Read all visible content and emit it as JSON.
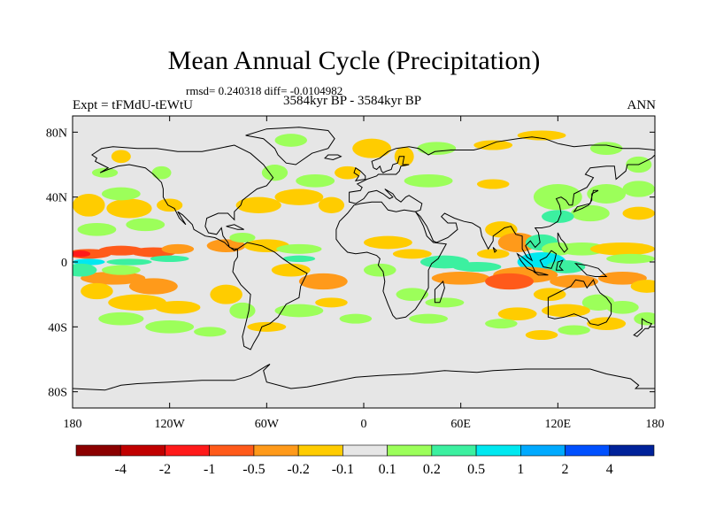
{
  "chart_data": {
    "type": "heatmap",
    "title": "Mean Annual Cycle (Precipitation)",
    "stats_label": "rmsd= 0.240318 diff= -0.0104982",
    "experiment_label": "Expt = tFMdU-tEWtU",
    "period_label": "3584kyr BP - 3584kyr BP",
    "season_label": "ANN",
    "xlim": [
      -180,
      180
    ],
    "ylim": [
      -90,
      90
    ],
    "x_ticks": [
      {
        "value": -180,
        "label": "180"
      },
      {
        "value": -120,
        "label": "120W"
      },
      {
        "value": -60,
        "label": "60W"
      },
      {
        "value": 0,
        "label": "0"
      },
      {
        "value": 60,
        "label": "60E"
      },
      {
        "value": 120,
        "label": "120E"
      },
      {
        "value": 180,
        "label": "180"
      }
    ],
    "y_ticks": [
      {
        "value": 80,
        "label": "80N"
      },
      {
        "value": 40,
        "label": "40N"
      },
      {
        "value": 0,
        "label": "0"
      },
      {
        "value": -40,
        "label": "40S"
      },
      {
        "value": -80,
        "label": "80S"
      }
    ],
    "colorbar": {
      "colors": [
        "#8b0000",
        "#c00000",
        "#ff1a1a",
        "#ff5a1a",
        "#ff9a1a",
        "#ffcc00",
        "#e6e6e6",
        "#9cff5a",
        "#3cf0a0",
        "#00e8f0",
        "#00aaff",
        "#0050ff",
        "#00229a"
      ],
      "labels": [
        "-4",
        "-2",
        "-1",
        "-0.5",
        "-0.2",
        "-0.1",
        "0.1",
        "0.2",
        "0.5",
        "1",
        "2",
        "4"
      ]
    },
    "anomaly_patches": [
      {
        "lon": -170,
        "lat": 5,
        "rx": 14,
        "ry": 3,
        "level": -3
      },
      {
        "lon": -150,
        "lat": 7,
        "rx": 14,
        "ry": 3,
        "level": -3
      },
      {
        "lon": -130,
        "lat": 6,
        "rx": 14,
        "ry": 3,
        "level": -3
      },
      {
        "lon": -115,
        "lat": 8,
        "rx": 10,
        "ry": 3,
        "level": -2
      },
      {
        "lon": -170,
        "lat": 0,
        "rx": 10,
        "ry": 2,
        "level": 3
      },
      {
        "lon": -145,
        "lat": 0,
        "rx": 14,
        "ry": 2,
        "level": 2
      },
      {
        "lon": -120,
        "lat": 2,
        "rx": 12,
        "ry": 2,
        "level": 2
      },
      {
        "lon": -175,
        "lat": 5,
        "rx": 6,
        "ry": 2,
        "level": -4
      },
      {
        "lon": -155,
        "lat": -10,
        "rx": 20,
        "ry": 4,
        "level": -2
      },
      {
        "lon": -130,
        "lat": -15,
        "rx": 15,
        "ry": 5,
        "level": -2
      },
      {
        "lon": -175,
        "lat": -5,
        "rx": 10,
        "ry": 4,
        "level": 2
      },
      {
        "lon": -150,
        "lat": -5,
        "rx": 12,
        "ry": 3,
        "level": 1
      },
      {
        "lon": -165,
        "lat": -18,
        "rx": 10,
        "ry": 5,
        "level": -1
      },
      {
        "lon": -140,
        "lat": -25,
        "rx": 18,
        "ry": 5,
        "level": -1
      },
      {
        "lon": -115,
        "lat": -28,
        "rx": 14,
        "ry": 4,
        "level": -1
      },
      {
        "lon": -150,
        "lat": -35,
        "rx": 14,
        "ry": 4,
        "level": 1
      },
      {
        "lon": -120,
        "lat": -40,
        "rx": 15,
        "ry": 4,
        "level": 1
      },
      {
        "lon": -95,
        "lat": -43,
        "rx": 10,
        "ry": 3,
        "level": 1
      },
      {
        "lon": -170,
        "lat": 35,
        "rx": 10,
        "ry": 7,
        "level": -1
      },
      {
        "lon": -145,
        "lat": 33,
        "rx": 14,
        "ry": 6,
        "level": -1
      },
      {
        "lon": -120,
        "lat": 35,
        "rx": 8,
        "ry": 4,
        "level": -1
      },
      {
        "lon": -150,
        "lat": 42,
        "rx": 12,
        "ry": 4,
        "level": 1
      },
      {
        "lon": -165,
        "lat": 20,
        "rx": 12,
        "ry": 4,
        "level": 1
      },
      {
        "lon": -135,
        "lat": 23,
        "rx": 12,
        "ry": 4,
        "level": 1
      },
      {
        "lon": -150,
        "lat": 65,
        "rx": 6,
        "ry": 4,
        "level": -1
      },
      {
        "lon": -125,
        "lat": 55,
        "rx": 6,
        "ry": 4,
        "level": 1
      },
      {
        "lon": -160,
        "lat": 55,
        "rx": 8,
        "ry": 3,
        "level": 1
      },
      {
        "lon": -85,
        "lat": 10,
        "rx": 12,
        "ry": 4,
        "level": -2
      },
      {
        "lon": -60,
        "lat": 10,
        "rx": 14,
        "ry": 4,
        "level": -1
      },
      {
        "lon": -75,
        "lat": 15,
        "rx": 8,
        "ry": 3,
        "level": 1
      },
      {
        "lon": -40,
        "lat": 8,
        "rx": 14,
        "ry": 3,
        "level": 1
      },
      {
        "lon": -40,
        "lat": 2,
        "rx": 10,
        "ry": 2,
        "level": 2
      },
      {
        "lon": -45,
        "lat": -5,
        "rx": 12,
        "ry": 4,
        "level": -1
      },
      {
        "lon": -25,
        "lat": -12,
        "rx": 15,
        "ry": 5,
        "level": -2
      },
      {
        "lon": -85,
        "lat": -20,
        "rx": 10,
        "ry": 6,
        "level": -1
      },
      {
        "lon": -75,
        "lat": -30,
        "rx": 8,
        "ry": 5,
        "level": 1
      },
      {
        "lon": -40,
        "lat": -30,
        "rx": 15,
        "ry": 4,
        "level": 1
      },
      {
        "lon": -20,
        "lat": -25,
        "rx": 10,
        "ry": 3,
        "level": -1
      },
      {
        "lon": -60,
        "lat": -40,
        "rx": 12,
        "ry": 3,
        "level": -1
      },
      {
        "lon": -5,
        "lat": -35,
        "rx": 10,
        "ry": 3,
        "level": 1
      },
      {
        "lon": -65,
        "lat": 35,
        "rx": 14,
        "ry": 5,
        "level": -1
      },
      {
        "lon": -40,
        "lat": 40,
        "rx": 15,
        "ry": 5,
        "level": -1
      },
      {
        "lon": -20,
        "lat": 35,
        "rx": 8,
        "ry": 5,
        "level": -1
      },
      {
        "lon": -30,
        "lat": 50,
        "rx": 12,
        "ry": 4,
        "level": 1
      },
      {
        "lon": -10,
        "lat": 55,
        "rx": 8,
        "ry": 4,
        "level": -1
      },
      {
        "lon": -55,
        "lat": 55,
        "rx": 8,
        "ry": 5,
        "level": 1
      },
      {
        "lon": 5,
        "lat": 70,
        "rx": 12,
        "ry": 6,
        "level": -1
      },
      {
        "lon": 25,
        "lat": 65,
        "rx": 6,
        "ry": 6,
        "level": -1
      },
      {
        "lon": -45,
        "lat": 75,
        "rx": 10,
        "ry": 4,
        "level": 1
      },
      {
        "lon": 45,
        "lat": 70,
        "rx": 12,
        "ry": 4,
        "level": 1
      },
      {
        "lon": 80,
        "lat": 72,
        "rx": 12,
        "ry": 3,
        "level": -1
      },
      {
        "lon": 110,
        "lat": 78,
        "rx": 15,
        "ry": 3,
        "level": -1
      },
      {
        "lon": 150,
        "lat": 70,
        "rx": 10,
        "ry": 4,
        "level": 1
      },
      {
        "lon": 170,
        "lat": 60,
        "rx": 8,
        "ry": 5,
        "level": 1
      },
      {
        "lon": 40,
        "lat": 50,
        "rx": 15,
        "ry": 4,
        "level": 1
      },
      {
        "lon": 80,
        "lat": 48,
        "rx": 10,
        "ry": 3,
        "level": -1
      },
      {
        "lon": 120,
        "lat": 40,
        "rx": 15,
        "ry": 8,
        "level": 1
      },
      {
        "lon": 150,
        "lat": 42,
        "rx": 12,
        "ry": 6,
        "level": 1
      },
      {
        "lon": 140,
        "lat": 30,
        "rx": 12,
        "ry": 5,
        "level": 1
      },
      {
        "lon": 120,
        "lat": 28,
        "rx": 10,
        "ry": 4,
        "level": 2
      },
      {
        "lon": 170,
        "lat": 45,
        "rx": 10,
        "ry": 5,
        "level": 1
      },
      {
        "lon": 170,
        "lat": 30,
        "rx": 10,
        "ry": 4,
        "level": -1
      },
      {
        "lon": 15,
        "lat": 12,
        "rx": 15,
        "ry": 4,
        "level": -1
      },
      {
        "lon": 30,
        "lat": 5,
        "rx": 12,
        "ry": 3,
        "level": -1
      },
      {
        "lon": 10,
        "lat": -5,
        "rx": 10,
        "ry": 4,
        "level": 1
      },
      {
        "lon": 50,
        "lat": 0,
        "rx": 15,
        "ry": 4,
        "level": 2
      },
      {
        "lon": 70,
        "lat": -3,
        "rx": 15,
        "ry": 3,
        "level": 2
      },
      {
        "lon": 60,
        "lat": -10,
        "rx": 18,
        "ry": 4,
        "level": -2
      },
      {
        "lon": 80,
        "lat": 5,
        "rx": 10,
        "ry": 3,
        "level": -1
      },
      {
        "lon": 30,
        "lat": -20,
        "rx": 10,
        "ry": 4,
        "level": 1
      },
      {
        "lon": 50,
        "lat": -25,
        "rx": 12,
        "ry": 3,
        "level": 1
      },
      {
        "lon": 40,
        "lat": -35,
        "rx": 12,
        "ry": 3,
        "level": 1
      },
      {
        "lon": 85,
        "lat": 20,
        "rx": 10,
        "ry": 5,
        "level": -1
      },
      {
        "lon": 95,
        "lat": 12,
        "rx": 12,
        "ry": 6,
        "level": -2
      },
      {
        "lon": 110,
        "lat": 12,
        "rx": 10,
        "ry": 5,
        "level": 2
      },
      {
        "lon": 120,
        "lat": 8,
        "rx": 10,
        "ry": 4,
        "level": 1
      },
      {
        "lon": 135,
        "lat": 8,
        "rx": 15,
        "ry": 4,
        "level": 1
      },
      {
        "lon": 160,
        "lat": 8,
        "rx": 20,
        "ry": 4,
        "level": -1
      },
      {
        "lon": 165,
        "lat": 2,
        "rx": 15,
        "ry": 3,
        "level": 1
      },
      {
        "lon": 110,
        "lat": 0,
        "rx": 15,
        "ry": 6,
        "level": 3
      },
      {
        "lon": 125,
        "lat": -3,
        "rx": 12,
        "ry": 4,
        "level": 2
      },
      {
        "lon": 100,
        "lat": -8,
        "rx": 20,
        "ry": 5,
        "level": -2
      },
      {
        "lon": 90,
        "lat": -12,
        "rx": 15,
        "ry": 5,
        "level": -3
      },
      {
        "lon": 130,
        "lat": -12,
        "rx": 15,
        "ry": 4,
        "level": -2
      },
      {
        "lon": 160,
        "lat": -10,
        "rx": 15,
        "ry": 4,
        "level": -2
      },
      {
        "lon": 175,
        "lat": -15,
        "rx": 10,
        "ry": 4,
        "level": -1
      },
      {
        "lon": 115,
        "lat": -20,
        "rx": 10,
        "ry": 4,
        "level": -1
      },
      {
        "lon": 145,
        "lat": -25,
        "rx": 10,
        "ry": 5,
        "level": 1
      },
      {
        "lon": 160,
        "lat": -28,
        "rx": 10,
        "ry": 4,
        "level": 1
      },
      {
        "lon": 125,
        "lat": -30,
        "rx": 15,
        "ry": 4,
        "level": -1
      },
      {
        "lon": 150,
        "lat": -38,
        "rx": 12,
        "ry": 4,
        "level": -1
      },
      {
        "lon": 95,
        "lat": -32,
        "rx": 12,
        "ry": 4,
        "level": -1
      },
      {
        "lon": 85,
        "lat": -38,
        "rx": 10,
        "ry": 3,
        "level": 1
      },
      {
        "lon": 130,
        "lat": -42,
        "rx": 10,
        "ry": 3,
        "level": 1
      },
      {
        "lon": 175,
        "lat": -35,
        "rx": 8,
        "ry": 4,
        "level": 1
      },
      {
        "lon": 110,
        "lat": -45,
        "rx": 10,
        "ry": 3,
        "level": -1
      }
    ]
  }
}
